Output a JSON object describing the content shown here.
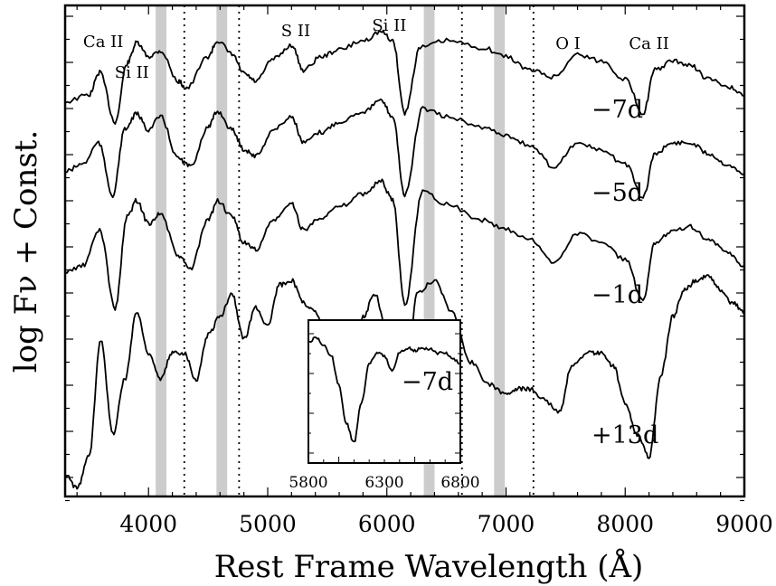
{
  "chart_data": {
    "type": "line",
    "xlabel": "Rest Frame Wavelength (Å)",
    "ylabel": "log F_ν + Const.",
    "xlim": [
      3300,
      9000
    ],
    "x_ticks": [
      4000,
      5000,
      6000,
      7000,
      8000,
      9000
    ],
    "line_ids": [
      {
        "label": "Ca II",
        "wavelength": 3620
      },
      {
        "label": "Si II",
        "wavelength": 3860
      },
      {
        "label": "S II",
        "wavelength": 5235
      },
      {
        "label": "Si II",
        "wavelength": 6020
      },
      {
        "label": "O I",
        "wavelength": 7520
      },
      {
        "label": "Ca II",
        "wavelength": 8200
      }
    ],
    "shaded_bands": [
      [
        4060,
        4150
      ],
      [
        4570,
        4660
      ],
      [
        6310,
        6400
      ],
      [
        6900,
        6990
      ]
    ],
    "dotted_lines": [
      4300,
      4760,
      6630,
      7230
    ],
    "series": [
      {
        "name": "−7d",
        "x": [
          3300,
          3500,
          3590,
          3720,
          3820,
          3900,
          4000,
          4100,
          4250,
          4320,
          4500,
          4580,
          4700,
          4800,
          4900,
          5050,
          5200,
          5300,
          5450,
          5600,
          5800,
          5950,
          6050,
          6150,
          6280,
          6500,
          6800,
          7000,
          7200,
          7400,
          7600,
          7800,
          8000,
          8150,
          8250,
          8400,
          8550,
          8700,
          8850,
          9000
        ],
        "y": [
          0.3,
          0.36,
          0.56,
          0.12,
          0.64,
          0.82,
          0.7,
          0.75,
          0.48,
          0.42,
          0.7,
          0.84,
          0.72,
          0.55,
          0.48,
          0.68,
          0.8,
          0.58,
          0.7,
          0.76,
          0.84,
          0.92,
          0.84,
          0.2,
          0.78,
          0.84,
          0.78,
          0.7,
          0.58,
          0.52,
          0.72,
          0.66,
          0.5,
          0.2,
          0.58,
          0.66,
          0.62,
          0.5,
          0.44,
          0.35
        ]
      },
      {
        "name": "−5d",
        "x": [
          3300,
          3450,
          3580,
          3700,
          3800,
          3900,
          4000,
          4100,
          4250,
          4350,
          4500,
          4580,
          4700,
          4800,
          4900,
          5050,
          5200,
          5300,
          5450,
          5600,
          5800,
          5950,
          6050,
          6150,
          6300,
          6500,
          6800,
          7000,
          7200,
          7400,
          7600,
          7800,
          8000,
          8150,
          8250,
          8400,
          8550,
          8700,
          8850,
          9000
        ],
        "y": [
          0.38,
          0.44,
          0.6,
          0.2,
          0.7,
          0.82,
          0.7,
          0.8,
          0.48,
          0.42,
          0.72,
          0.84,
          0.7,
          0.55,
          0.5,
          0.7,
          0.8,
          0.6,
          0.68,
          0.76,
          0.84,
          0.92,
          0.8,
          0.2,
          0.86,
          0.8,
          0.72,
          0.66,
          0.58,
          0.42,
          0.6,
          0.54,
          0.44,
          0.18,
          0.52,
          0.6,
          0.6,
          0.52,
          0.44,
          0.36
        ]
      },
      {
        "name": "−1d",
        "x": [
          3300,
          3450,
          3590,
          3720,
          3820,
          3900,
          4000,
          4100,
          4250,
          4350,
          4500,
          4580,
          4700,
          4800,
          4900,
          5050,
          5200,
          5300,
          5450,
          5600,
          5800,
          5950,
          6050,
          6150,
          6300,
          6500,
          6800,
          7000,
          7200,
          7400,
          7600,
          7800,
          8000,
          8150,
          8250,
          8400,
          8550,
          8700,
          8850,
          9000
        ],
        "y": [
          0.3,
          0.34,
          0.56,
          0.08,
          0.64,
          0.74,
          0.6,
          0.66,
          0.4,
          0.32,
          0.62,
          0.74,
          0.64,
          0.48,
          0.44,
          0.62,
          0.72,
          0.56,
          0.64,
          0.7,
          0.78,
          0.86,
          0.74,
          0.1,
          0.8,
          0.72,
          0.62,
          0.56,
          0.5,
          0.36,
          0.54,
          0.48,
          0.38,
          0.12,
          0.48,
          0.56,
          0.58,
          0.5,
          0.42,
          0.34
        ]
      },
      {
        "name": "+13d",
        "x": [
          3300,
          3400,
          3500,
          3600,
          3700,
          3800,
          3900,
          4000,
          4100,
          4200,
          4300,
          4400,
          4500,
          4600,
          4700,
          4800,
          4900,
          5000,
          5100,
          5200,
          5300,
          5400,
          5500,
          5600,
          5700,
          5800,
          5900,
          6000,
          6080,
          6150,
          6250,
          6400,
          6550,
          6700,
          6850,
          7000,
          7100,
          7200,
          7300,
          7450,
          7550,
          7700,
          7800,
          7900,
          8000,
          8100,
          8200,
          8300,
          8400,
          8500,
          8600,
          8700,
          8800,
          8900,
          9000
        ],
        "y": [
          0.1,
          0.04,
          0.18,
          0.7,
          0.28,
          0.52,
          0.82,
          0.64,
          0.52,
          0.64,
          0.64,
          0.52,
          0.72,
          0.8,
          0.9,
          0.7,
          0.84,
          0.76,
          0.94,
          0.96,
          0.86,
          0.82,
          0.7,
          0.66,
          0.6,
          0.8,
          0.9,
          0.74,
          0.54,
          0.32,
          0.9,
          0.96,
          0.82,
          0.6,
          0.5,
          0.46,
          0.48,
          0.48,
          0.44,
          0.38,
          0.58,
          0.64,
          0.64,
          0.58,
          0.42,
          0.28,
          0.18,
          0.54,
          0.8,
          0.92,
          0.96,
          0.98,
          0.92,
          0.86,
          0.82
        ]
      }
    ],
    "inset": {
      "xlim": [
        5800,
        6800
      ],
      "x_ticks": [
        5800,
        6300,
        6800
      ],
      "label": "−7d",
      "x": [
        5800,
        5850,
        5900,
        5950,
        6000,
        6050,
        6100,
        6150,
        6200,
        6250,
        6300,
        6350,
        6400,
        6450,
        6500,
        6550,
        6600,
        6650,
        6700,
        6750,
        6800
      ],
      "y": [
        0.88,
        0.92,
        0.86,
        0.78,
        0.55,
        0.25,
        0.1,
        0.42,
        0.72,
        0.8,
        0.78,
        0.66,
        0.8,
        0.84,
        0.82,
        0.84,
        0.83,
        0.8,
        0.8,
        0.76,
        0.72
      ]
    }
  }
}
